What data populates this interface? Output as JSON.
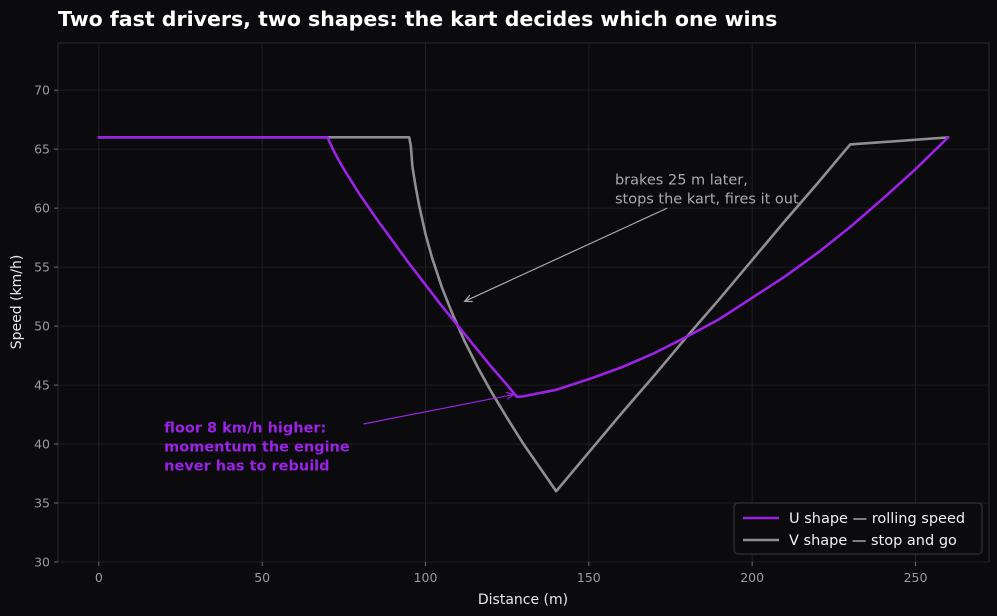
{
  "chart_data": {
    "type": "line",
    "title": "Two fast drivers, two shapes: the kart decides which one wins",
    "xlabel": "Distance (m)",
    "ylabel": "Speed (km/h)",
    "xlim": [
      -12.5,
      272.5
    ],
    "ylim": [
      30,
      74
    ],
    "xticks": [
      0,
      50,
      100,
      150,
      200,
      250
    ],
    "yticks": [
      30,
      35,
      40,
      45,
      50,
      55,
      60,
      65,
      70
    ],
    "grid": true,
    "legend_position": "bottom-right",
    "series": [
      {
        "name": "U shape — rolling speed",
        "color": "#9b22e6",
        "points": [
          [
            0,
            66
          ],
          [
            70,
            66
          ],
          [
            72,
            64.8
          ],
          [
            75,
            63.3
          ],
          [
            80,
            61.1
          ],
          [
            85,
            59.1
          ],
          [
            90,
            57.2
          ],
          [
            95,
            55.3
          ],
          [
            100,
            53.5
          ],
          [
            105,
            51.7
          ],
          [
            110,
            50.0
          ],
          [
            115,
            48.3
          ],
          [
            120,
            46.6
          ],
          [
            125,
            45.0
          ],
          [
            128,
            44.0
          ],
          [
            130,
            44.05
          ],
          [
            140,
            44.6
          ],
          [
            150,
            45.5
          ],
          [
            160,
            46.5
          ],
          [
            170,
            47.7
          ],
          [
            180,
            49.1
          ],
          [
            190,
            50.6
          ],
          [
            200,
            52.4
          ],
          [
            210,
            54.2
          ],
          [
            220,
            56.2
          ],
          [
            230,
            58.4
          ],
          [
            240,
            60.8
          ],
          [
            250,
            63.3
          ],
          [
            260,
            66
          ]
        ]
      },
      {
        "name": "V shape — stop and go",
        "color": "#8e8e93",
        "points": [
          [
            0,
            66
          ],
          [
            95,
            66
          ],
          [
            95.5,
            65.3
          ],
          [
            96,
            63.5
          ],
          [
            97,
            61.8
          ],
          [
            98,
            60.3
          ],
          [
            100,
            57.8
          ],
          [
            102,
            55.8
          ],
          [
            105,
            53.3
          ],
          [
            108,
            51.2
          ],
          [
            112,
            48.7
          ],
          [
            116,
            46.5
          ],
          [
            120,
            44.5
          ],
          [
            125,
            42.2
          ],
          [
            130,
            40.0
          ],
          [
            135,
            38.0
          ],
          [
            140,
            36
          ],
          [
            150,
            39.3
          ],
          [
            160,
            42.6
          ],
          [
            170,
            45.8
          ],
          [
            180,
            49.1
          ],
          [
            190,
            52.3
          ],
          [
            200,
            55.6
          ],
          [
            210,
            58.9
          ],
          [
            220,
            62.1
          ],
          [
            230,
            65.4
          ],
          [
            260,
            66
          ]
        ]
      }
    ],
    "annotations": [
      {
        "lines": [
          "brakes 25 m later,",
          "stops the kart, fires it out"
        ],
        "text_at": [
          158,
          62
        ],
        "arrow_from": [
          174,
          60
        ],
        "arrow_to": [
          112,
          52.1
        ],
        "color": "#a9a9ae"
      },
      {
        "lines": [
          "floor 8 km/h higher:",
          "momentum the engine",
          "never has to rebuild"
        ],
        "text_at": [
          20,
          41
        ],
        "arrow_from": [
          81,
          41.7
        ],
        "arrow_to": [
          127,
          44.2
        ],
        "color": "#9b22e6"
      }
    ]
  }
}
